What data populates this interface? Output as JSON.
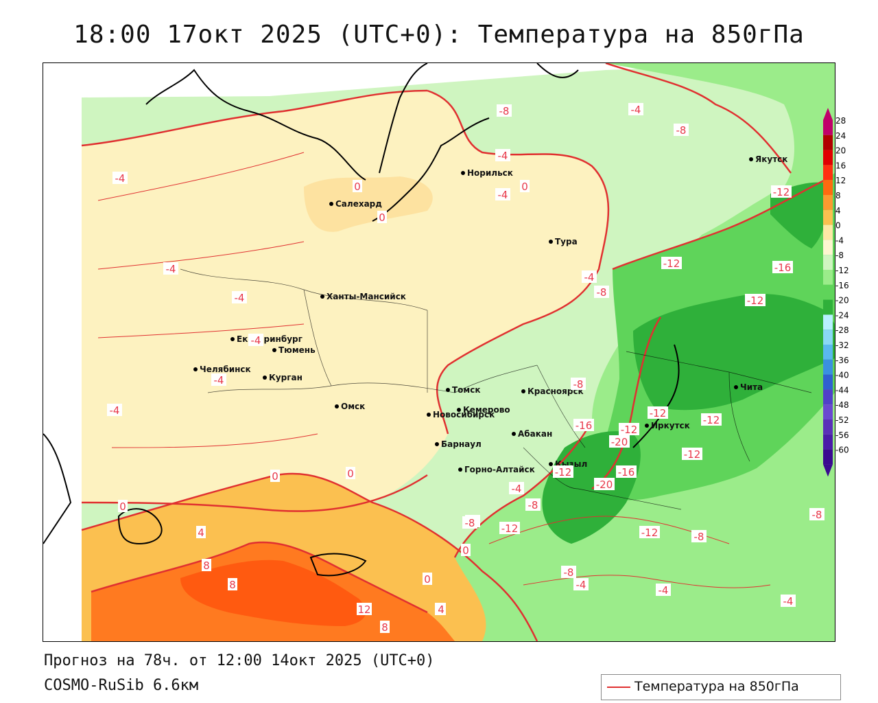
{
  "title": "18:00 17окт 2025 (UTC+0): Температура на 850гПа",
  "footer": {
    "forecast": "Прогноз на 78ч. от 12:00 14окт 2025 (UTC+0)",
    "model": "COSMO-RuSib 6.6км"
  },
  "legend": {
    "label": "Температура на 850гПа",
    "color": "#e03030"
  },
  "colors": {
    "warm_dark": "#ff6a1a",
    "warm_mid": "#fbb040",
    "warm_light": "#fde8a6",
    "zero_band": "#fdf2c0",
    "cold_light": "#cff5c0",
    "cold_mid": "#9bec8a",
    "cold_strong": "#5fd45a",
    "cold_dark": "#2fb03a",
    "contour": "#e03030",
    "coast": "#000000"
  },
  "colorbar": {
    "ticks": [
      "28",
      "24",
      "20",
      "16",
      "12",
      "8",
      "4",
      "0",
      "-4",
      "-8",
      "-12",
      "-16",
      "-20",
      "-24",
      "-28",
      "-32",
      "-36",
      "-40",
      "-44",
      "-48",
      "-52",
      "-56",
      "-60"
    ],
    "colors": [
      "#c0006a",
      "#b00000",
      "#e00000",
      "#ff3010",
      "#ff6a10",
      "#fb9a30",
      "#fbc050",
      "#fde8a6",
      "#fdf6d0",
      "#cff5c0",
      "#9bec8a",
      "#5fd45a",
      "#2fb03a",
      "#b8f0ff",
      "#8ad8f5",
      "#5ab8ee",
      "#3a90e0",
      "#3060d0",
      "#5040c8",
      "#6a48d0",
      "#5a30b8",
      "#4a1ca8",
      "#3a0a90"
    ]
  },
  "cities": [
    {
      "name": "Якутск"
    },
    {
      "name": "Норильск"
    },
    {
      "name": "Салехард"
    },
    {
      "name": "Тура"
    },
    {
      "name": "Ханты-Мансийск"
    },
    {
      "name": "Екатеринбург"
    },
    {
      "name": "Тюмень"
    },
    {
      "name": "Челябинск"
    },
    {
      "name": "Курган"
    },
    {
      "name": "Омск"
    },
    {
      "name": "Новосибирск"
    },
    {
      "name": "Томск"
    },
    {
      "name": "Кемерово"
    },
    {
      "name": "Красноярск"
    },
    {
      "name": "Барнаул"
    },
    {
      "name": "Абакан"
    },
    {
      "name": "Горно-Алтайск"
    },
    {
      "name": "Кызыл"
    },
    {
      "name": "Иркутск"
    },
    {
      "name": "Чита"
    }
  ],
  "isolines": [
    "-8",
    "-4",
    "-8",
    "-4",
    "0",
    "-4",
    "0",
    "0",
    "-4",
    "-4",
    "-4",
    "-4",
    "-4",
    "-4",
    "0",
    "0",
    "4",
    "8",
    "8",
    "12",
    "8",
    "4",
    "0",
    "0",
    "-8",
    "-12",
    "-16",
    "-12",
    "-12",
    "-12",
    "-12",
    "-16",
    "-20",
    "-16",
    "-20",
    "-12",
    "-8",
    "-8",
    "-12",
    "-12",
    "-8",
    "-8",
    "-4",
    "-4",
    "-4",
    "-8",
    "-8",
    "-4",
    "-12",
    "-8",
    "-4",
    "-8",
    "-12",
    "0",
    "4"
  ]
}
